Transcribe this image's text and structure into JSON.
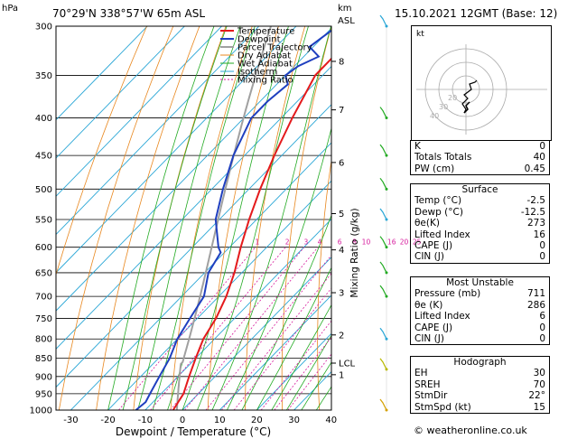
{
  "header": {
    "location": "70°29'N  338°57'W  65m  ASL",
    "datetime": "15.10.2021  12GMT  (Base: 12)",
    "hpa_unit": "hPa",
    "km_unit": "km",
    "asl_unit": "ASL"
  },
  "chart_data": {
    "type": "line",
    "xlabel": "Dewpoint / Temperature (°C)",
    "ylabel": "",
    "mixing_ratio_label": "Mixing Ratio (g/kg)",
    "x_ticks": [
      -30,
      -20,
      -10,
      0,
      10,
      20,
      30,
      40
    ],
    "pressure_levels": [
      300,
      350,
      400,
      450,
      500,
      550,
      600,
      650,
      700,
      750,
      800,
      850,
      900,
      950,
      1000
    ],
    "km_ticks": [
      {
        "label": "8",
        "p": 335
      },
      {
        "label": "7",
        "p": 390
      },
      {
        "label": "6",
        "p": 460
      },
      {
        "label": "5",
        "p": 540
      },
      {
        "label": "4",
        "p": 605
      },
      {
        "label": "3",
        "p": 692
      },
      {
        "label": "2",
        "p": 790
      },
      {
        "label": "LCL",
        "p": 863
      },
      {
        "label": "1",
        "p": 895
      }
    ],
    "mixing_ratio_values": [
      "1",
      "2",
      "3",
      "4",
      "6",
      "8",
      "10",
      "16",
      "20",
      "25"
    ],
    "legend": [
      "Temperature",
      "Dewpoint",
      "Parcel Trajectory",
      "Dry Adiabat",
      "Wet Adiabat",
      "Isotherm",
      "Mixing Ratio"
    ],
    "series": [
      {
        "name": "Temperature",
        "points": [
          [
            1000,
            -2.5
          ],
          [
            950,
            -4
          ],
          [
            900,
            -7
          ],
          [
            850,
            -10
          ],
          [
            800,
            -13
          ],
          [
            750,
            -15
          ],
          [
            700,
            -18
          ],
          [
            650,
            -22
          ],
          [
            600,
            -27
          ],
          [
            550,
            -32
          ],
          [
            500,
            -37
          ],
          [
            450,
            -42
          ],
          [
            400,
            -47
          ],
          [
            350,
            -52
          ],
          [
            330,
            -52
          ],
          [
            310,
            -54
          ],
          [
            300,
            -55
          ]
        ]
      },
      {
        "name": "Dewpoint",
        "points": [
          [
            1000,
            -12.5
          ],
          [
            975,
            -12
          ],
          [
            950,
            -13
          ],
          [
            900,
            -15
          ],
          [
            850,
            -17
          ],
          [
            800,
            -20
          ],
          [
            750,
            -22
          ],
          [
            700,
            -24
          ],
          [
            650,
            -29
          ],
          [
            610,
            -31
          ],
          [
            600,
            -33
          ],
          [
            550,
            -41
          ],
          [
            500,
            -47
          ],
          [
            450,
            -53
          ],
          [
            400,
            -58
          ],
          [
            380,
            -58
          ],
          [
            360,
            -57
          ],
          [
            350,
            -60
          ],
          [
            340,
            -59
          ],
          [
            330,
            -56
          ],
          [
            320,
            -61
          ],
          [
            300,
            -59
          ]
        ]
      }
    ]
  },
  "colors": {
    "temperature": "#e41a1c",
    "dewpoint": "#1f3fbf",
    "parcel": "#a0a0a0",
    "dry_adiabat": "#e8871e",
    "wet_adiabat": "#22aa22",
    "isotherm": "#29a6d6",
    "mixing_ratio": "#d61a9c"
  },
  "winds": [
    {
      "p": 300,
      "color": "#29a6d6"
    },
    {
      "p": 400,
      "color": "#22aa22"
    },
    {
      "p": 450,
      "color": "#22aa22"
    },
    {
      "p": 500,
      "color": "#22aa22"
    },
    {
      "p": 550,
      "color": "#29a6d6"
    },
    {
      "p": 600,
      "color": "#22aa22"
    },
    {
      "p": 650,
      "color": "#22aa22"
    },
    {
      "p": 700,
      "color": "#22aa22"
    },
    {
      "p": 800,
      "color": "#29a6d6"
    },
    {
      "p": 880,
      "color": "#b8b800"
    },
    {
      "p": 1000,
      "color": "#d4a000"
    }
  ],
  "hodograph": {
    "unit": "kt",
    "ring_labels": [
      "40",
      "30",
      "20"
    ]
  },
  "indices": [
    {
      "label": "K",
      "value": "0"
    },
    {
      "label": "Totals Totals",
      "value": "40"
    },
    {
      "label": "PW (cm)",
      "value": "0.45"
    }
  ],
  "surface": {
    "title": "Surface",
    "rows": [
      {
        "label": "Temp (°C)",
        "value": "-2.5"
      },
      {
        "label": "Dewp (°C)",
        "value": "-12.5"
      },
      {
        "label": "θe(K)",
        "value": "273"
      },
      {
        "label": "Lifted Index",
        "value": "16"
      },
      {
        "label": "CAPE (J)",
        "value": "0"
      },
      {
        "label": "CIN (J)",
        "value": "0"
      }
    ]
  },
  "most_unstable": {
    "title": "Most Unstable",
    "rows": [
      {
        "label": "Pressure (mb)",
        "value": "711"
      },
      {
        "label": "θe (K)",
        "value": "286"
      },
      {
        "label": "Lifted Index",
        "value": "6"
      },
      {
        "label": "CAPE (J)",
        "value": "0"
      },
      {
        "label": "CIN (J)",
        "value": "0"
      }
    ]
  },
  "hodograph_table": {
    "title": "Hodograph",
    "rows": [
      {
        "label": "EH",
        "value": "30"
      },
      {
        "label": "SREH",
        "value": "70"
      },
      {
        "label": "StmDir",
        "value": "22°"
      },
      {
        "label": "StmSpd (kt)",
        "value": "15"
      }
    ]
  },
  "copyright": "© weatheronline.co.uk"
}
